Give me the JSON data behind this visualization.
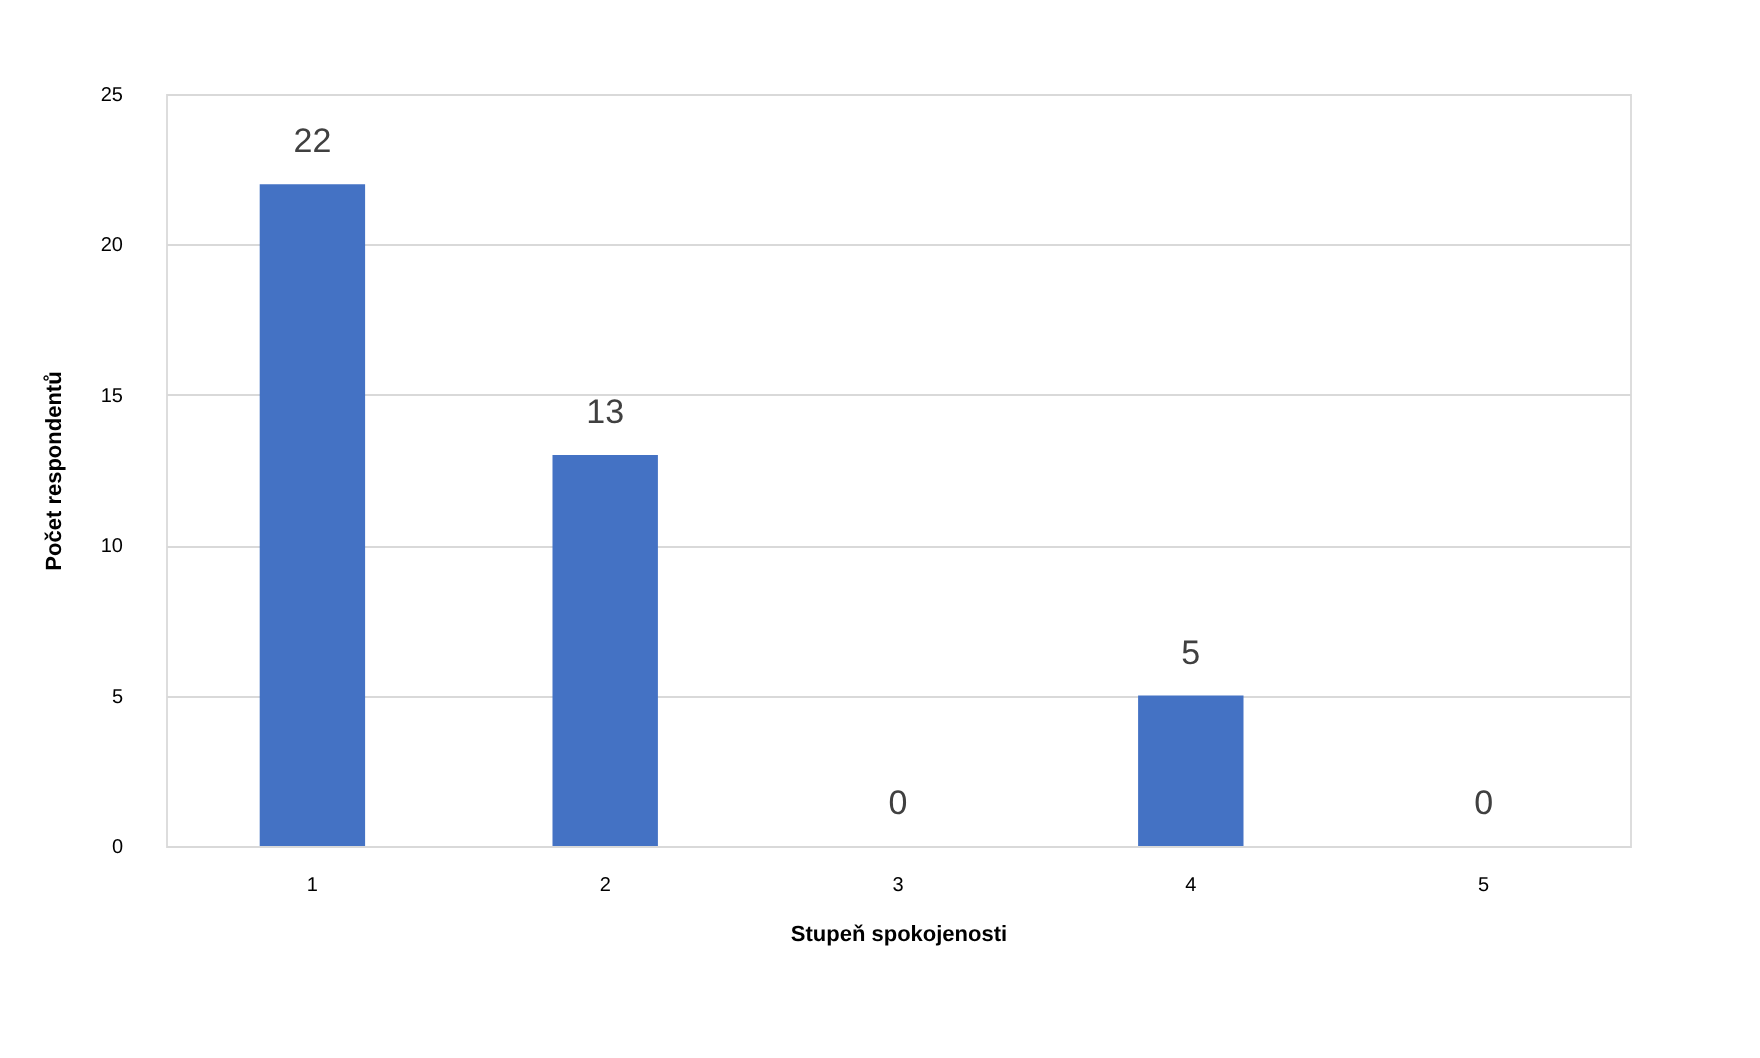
{
  "chart_data": {
    "type": "bar",
    "xlabel": "Stupeň spokojenosti",
    "ylabel": "Počet respondentů",
    "categories": [
      "1",
      "2",
      "3",
      "4",
      "5"
    ],
    "values": [
      22,
      13,
      0,
      5,
      0
    ],
    "color": "#4472c4",
    "ylim": [
      0,
      25
    ],
    "yticks": [
      0,
      5,
      10,
      15,
      20,
      25
    ],
    "grid": "y",
    "data_labels": true
  }
}
